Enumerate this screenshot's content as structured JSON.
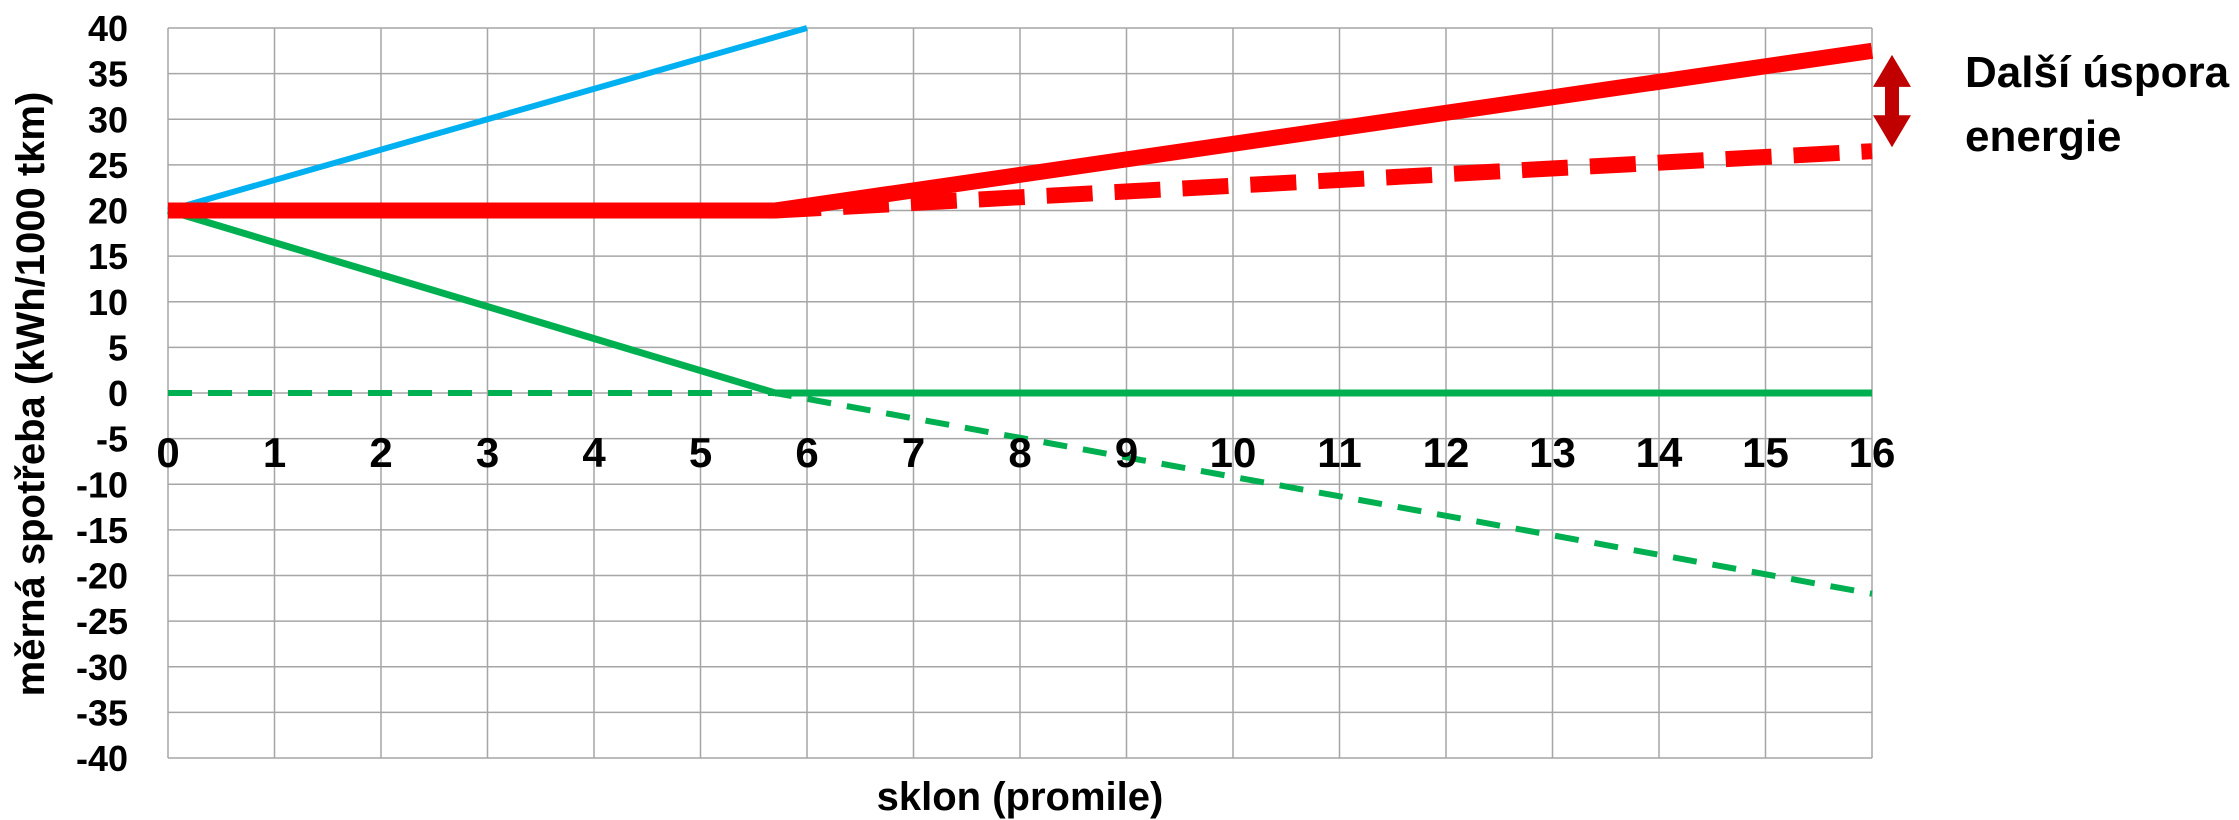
{
  "chart_data": {
    "type": "line",
    "title": "",
    "xlabel": "sklon (promile)",
    "ylabel": "měrná spotřeba (kWh/1000 tkm)",
    "xlim": [
      0,
      16
    ],
    "ylim": [
      -40,
      40
    ],
    "x_ticks": [
      "0",
      "1",
      "2",
      "3",
      "4",
      "5",
      "6",
      "7",
      "8",
      "9",
      "10",
      "11",
      "12",
      "13",
      "14",
      "15",
      "16"
    ],
    "y_ticks": [
      "40",
      "35",
      "30",
      "25",
      "20",
      "15",
      "10",
      "5",
      "0",
      "-5",
      "-10",
      "-15",
      "-20",
      "-25",
      "-30",
      "-35",
      "-40"
    ],
    "grid": true,
    "series": [
      {
        "color": "#00b0f0",
        "style": "solid",
        "width": 6,
        "points": [
          [
            0,
            20
          ],
          [
            6,
            40
          ]
        ]
      },
      {
        "color": "#00b050",
        "style": "solid",
        "width": 7,
        "points": [
          [
            0,
            20
          ],
          [
            5.7,
            0
          ]
        ]
      },
      {
        "color": "#00b050",
        "style": "solid",
        "width": 7,
        "points": [
          [
            5.7,
            0
          ],
          [
            16,
            0
          ]
        ]
      },
      {
        "color": "#00b050",
        "style": "dashed",
        "width": 6,
        "points": [
          [
            0,
            0
          ],
          [
            5.7,
            0
          ],
          [
            16,
            -22
          ]
        ]
      },
      {
        "color": "#ff0000",
        "style": "solid",
        "width": 16,
        "points": [
          [
            0,
            20
          ],
          [
            5.7,
            20
          ],
          [
            16,
            37.5
          ]
        ]
      },
      {
        "color": "#ff0000",
        "style": "dashed",
        "width": 16,
        "points": [
          [
            5.7,
            20
          ],
          [
            16,
            26.5
          ]
        ]
      }
    ],
    "annotation": {
      "text_line1": "Další úspora",
      "text_line2": "energie",
      "arrow_color": "#c00000",
      "arrow_from_y": 26.5,
      "arrow_to_y": 37.5
    }
  }
}
